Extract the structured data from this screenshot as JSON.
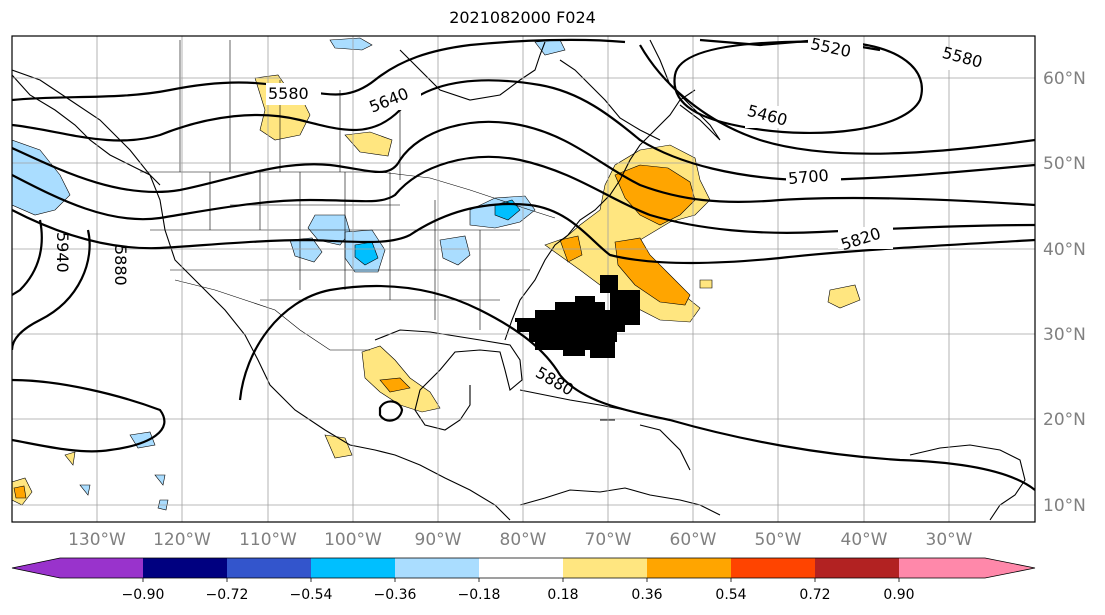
{
  "title": "2021082000 F024",
  "lon_labels": [
    "130°W",
    "120°W",
    "110°W",
    "100°W",
    "90°W",
    "80°W",
    "70°W",
    "60°W",
    "50°W",
    "40°W",
    "30°W"
  ],
  "lat_labels": [
    "60°N",
    "50°N",
    "40°N",
    "30°N",
    "20°N",
    "10°N"
  ],
  "contour_labels": [
    "5520",
    "5580",
    "5460",
    "5580",
    "5640",
    "5700",
    "5820",
    "5940",
    "5880",
    "5880"
  ],
  "colorbar": {
    "ticks": [
      "−0.90",
      "−0.72",
      "−0.54",
      "−0.36",
      "−0.18",
      "0.18",
      "0.36",
      "0.54",
      "0.72",
      "0.90"
    ],
    "colors": [
      "#9933cc",
      "#000080",
      "#3355cc",
      "#00bfff",
      "#aaddff",
      "#ffffff",
      "#ffe680",
      "#ffa500",
      "#ff4400",
      "#b22222",
      "#ff88aa"
    ]
  },
  "colors": {
    "light_blue": "#aaddff",
    "blue": "#00bfff",
    "light_yellow": "#ffe680",
    "orange": "#ffa500"
  }
}
